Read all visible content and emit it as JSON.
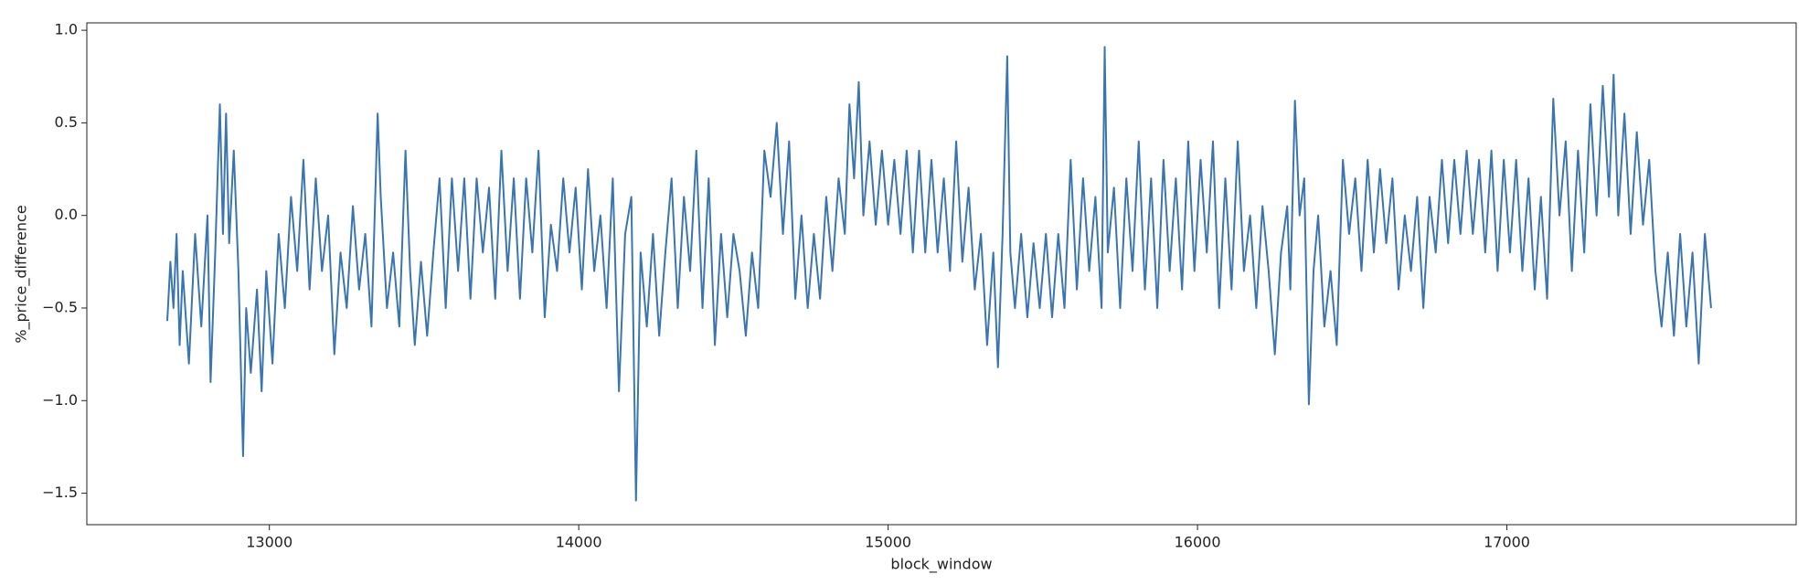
{
  "chart_data": {
    "type": "line",
    "xlabel": "block_window",
    "ylabel": "%_price_difference",
    "xlim": [
      12410,
      17935
    ],
    "ylim": [
      -1.67,
      1.04
    ],
    "xticks": [
      13000,
      14000,
      15000,
      16000,
      17000
    ],
    "yticks": [
      {
        "value": -1.5,
        "label": "−1.5"
      },
      {
        "value": -1.0,
        "label": "−1.0"
      },
      {
        "value": -0.5,
        "label": "−0.5"
      },
      {
        "value": 0.0,
        "label": "0.0"
      },
      {
        "value": 0.5,
        "label": "0.5"
      },
      {
        "value": 1.0,
        "label": "1.0"
      }
    ],
    "series": [
      {
        "color": "#3a75b0",
        "x": [
          12670,
          12680,
          12690,
          12700,
          12710,
          12720,
          12740,
          12760,
          12780,
          12800,
          12810,
          12825,
          12840,
          12850,
          12860,
          12870,
          12885,
          12900,
          12915,
          12925,
          12940,
          12960,
          12975,
          12990,
          13010,
          13030,
          13050,
          13070,
          13090,
          13110,
          13130,
          13150,
          13170,
          13190,
          13210,
          13230,
          13250,
          13270,
          13290,
          13310,
          13330,
          13350,
          13360,
          13380,
          13400,
          13420,
          13440,
          13455,
          13470,
          13490,
          13510,
          13530,
          13550,
          13570,
          13590,
          13610,
          13630,
          13650,
          13670,
          13690,
          13710,
          13730,
          13750,
          13770,
          13790,
          13810,
          13830,
          13850,
          13870,
          13890,
          13910,
          13930,
          13950,
          13970,
          13990,
          14010,
          14030,
          14050,
          14070,
          14090,
          14110,
          14130,
          14150,
          14170,
          14185,
          14200,
          14220,
          14240,
          14260,
          14280,
          14300,
          14320,
          14340,
          14360,
          14380,
          14400,
          14420,
          14440,
          14460,
          14480,
          14500,
          14520,
          14540,
          14560,
          14580,
          14600,
          14620,
          14640,
          14660,
          14680,
          14700,
          14720,
          14740,
          14760,
          14780,
          14800,
          14820,
          14840,
          14860,
          14875,
          14890,
          14905,
          14920,
          14940,
          14960,
          14980,
          15000,
          15020,
          15040,
          15060,
          15080,
          15100,
          15120,
          15140,
          15160,
          15180,
          15200,
          15220,
          15240,
          15260,
          15280,
          15300,
          15320,
          15340,
          15355,
          15370,
          15385,
          15395,
          15410,
          15430,
          15450,
          15470,
          15490,
          15510,
          15530,
          15550,
          15570,
          15590,
          15610,
          15630,
          15650,
          15670,
          15690,
          15700,
          15710,
          15730,
          15750,
          15770,
          15790,
          15810,
          15830,
          15850,
          15870,
          15890,
          15910,
          15930,
          15950,
          15970,
          15990,
          16010,
          16030,
          16050,
          16070,
          16090,
          16110,
          16130,
          16150,
          16170,
          16190,
          16210,
          16230,
          16250,
          16270,
          16290,
          16300,
          16315,
          16330,
          16345,
          16360,
          16375,
          16390,
          16410,
          16430,
          16450,
          16470,
          16490,
          16510,
          16530,
          16550,
          16570,
          16590,
          16610,
          16630,
          16650,
          16670,
          16690,
          16710,
          16730,
          16750,
          16770,
          16790,
          16810,
          16830,
          16850,
          16870,
          16890,
          16910,
          16930,
          16950,
          16970,
          16990,
          17010,
          17030,
          17050,
          17070,
          17090,
          17110,
          17130,
          17150,
          17170,
          17190,
          17210,
          17230,
          17250,
          17270,
          17290,
          17310,
          17330,
          17345,
          17360,
          17380,
          17400,
          17420,
          17440,
          17460,
          17480,
          17500,
          17520,
          17540,
          17560,
          17580,
          17600,
          17620,
          17640,
          17660
        ],
        "values": [
          -0.57,
          -0.25,
          -0.5,
          -0.1,
          -0.7,
          -0.3,
          -0.8,
          -0.1,
          -0.6,
          0.0,
          -0.9,
          -0.2,
          0.6,
          -0.1,
          0.55,
          -0.15,
          0.35,
          -0.3,
          -1.3,
          -0.5,
          -0.85,
          -0.4,
          -0.95,
          -0.3,
          -0.8,
          -0.1,
          -0.5,
          0.1,
          -0.3,
          0.3,
          -0.4,
          0.2,
          -0.3,
          0.0,
          -0.75,
          -0.2,
          -0.5,
          0.05,
          -0.4,
          -0.1,
          -0.6,
          0.55,
          0.1,
          -0.5,
          -0.2,
          -0.6,
          0.35,
          -0.3,
          -0.7,
          -0.25,
          -0.65,
          -0.2,
          0.2,
          -0.5,
          0.2,
          -0.3,
          0.2,
          -0.45,
          0.2,
          -0.2,
          0.15,
          -0.45,
          0.35,
          -0.3,
          0.2,
          -0.45,
          0.2,
          -0.2,
          0.35,
          -0.55,
          -0.05,
          -0.3,
          0.2,
          -0.2,
          0.15,
          -0.4,
          0.25,
          -0.3,
          0.0,
          -0.5,
          0.2,
          -0.95,
          -0.1,
          0.1,
          -1.54,
          -0.2,
          -0.6,
          -0.1,
          -0.65,
          -0.2,
          0.2,
          -0.5,
          0.1,
          -0.3,
          0.35,
          -0.5,
          0.2,
          -0.7,
          -0.1,
          -0.55,
          -0.1,
          -0.3,
          -0.65,
          -0.2,
          -0.5,
          0.35,
          0.1,
          0.5,
          -0.1,
          0.4,
          -0.45,
          0.0,
          -0.5,
          -0.1,
          -0.45,
          0.1,
          -0.3,
          0.2,
          -0.1,
          0.6,
          0.2,
          0.72,
          0.0,
          0.4,
          -0.05,
          0.35,
          -0.05,
          0.3,
          -0.1,
          0.35,
          -0.2,
          0.35,
          -0.2,
          0.3,
          -0.2,
          0.2,
          -0.3,
          0.4,
          -0.25,
          0.15,
          -0.4,
          -0.1,
          -0.7,
          -0.2,
          -0.82,
          -0.1,
          0.86,
          -0.2,
          -0.5,
          -0.1,
          -0.55,
          -0.15,
          -0.5,
          -0.1,
          -0.55,
          -0.1,
          -0.5,
          0.3,
          -0.4,
          0.2,
          -0.3,
          0.1,
          -0.5,
          0.91,
          -0.2,
          0.15,
          -0.5,
          0.2,
          -0.3,
          0.4,
          -0.4,
          0.2,
          -0.5,
          0.3,
          -0.3,
          0.2,
          -0.4,
          0.4,
          -0.3,
          0.3,
          -0.2,
          0.4,
          -0.5,
          0.2,
          -0.4,
          0.4,
          -0.3,
          0.0,
          -0.5,
          0.05,
          -0.3,
          -0.75,
          -0.2,
          0.05,
          -0.4,
          0.62,
          0.0,
          0.2,
          -1.02,
          -0.3,
          0.0,
          -0.6,
          -0.3,
          -0.7,
          0.3,
          -0.1,
          0.2,
          -0.3,
          0.3,
          -0.2,
          0.25,
          -0.15,
          0.2,
          -0.4,
          0.0,
          -0.3,
          0.1,
          -0.5,
          0.1,
          -0.2,
          0.3,
          -0.15,
          0.3,
          -0.1,
          0.35,
          -0.1,
          0.3,
          -0.2,
          0.35,
          -0.3,
          0.3,
          -0.2,
          0.3,
          -0.3,
          0.2,
          -0.4,
          0.1,
          -0.45,
          0.63,
          0.0,
          0.4,
          -0.3,
          0.35,
          -0.2,
          0.6,
          0.0,
          0.7,
          0.1,
          0.76,
          0.0,
          0.55,
          -0.1,
          0.45,
          -0.05,
          0.3,
          -0.3,
          -0.6,
          -0.2,
          -0.65,
          -0.1,
          -0.6,
          -0.2,
          -0.8,
          -0.1,
          -0.5
        ]
      }
    ]
  }
}
